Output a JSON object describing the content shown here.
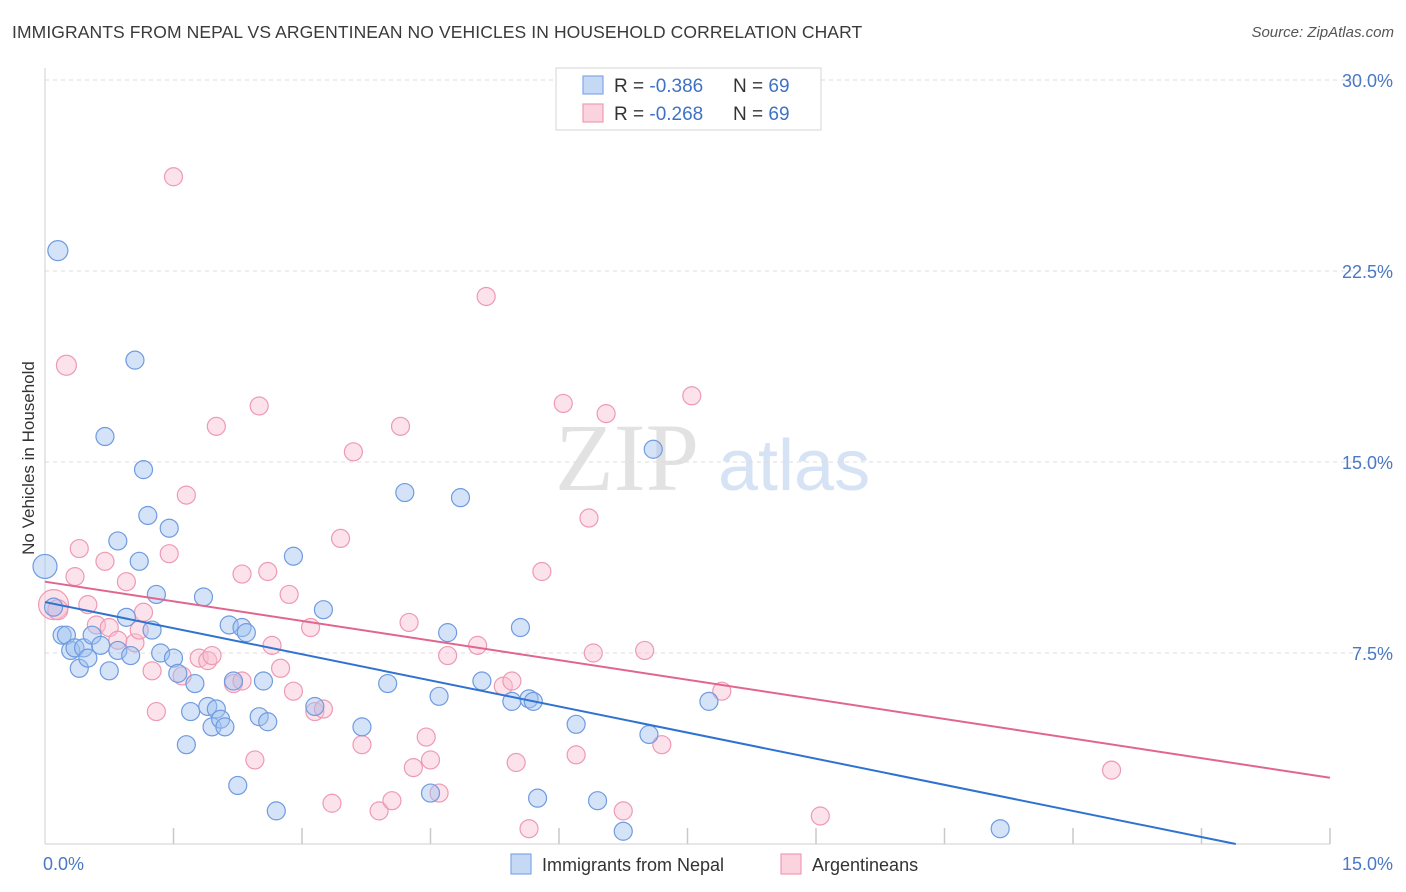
{
  "header": {
    "title": "IMMIGRANTS FROM NEPAL VS ARGENTINEAN NO VEHICLES IN HOUSEHOLD CORRELATION CHART",
    "source": "Source: ZipAtlas.com"
  },
  "watermark": {
    "zip": "ZIP",
    "atlas": "atlas"
  },
  "legend": {
    "rows": [
      {
        "r_label": "R = ",
        "r_value": "-0.386",
        "n_label": "N = ",
        "n_value": "69"
      },
      {
        "r_label": "R = ",
        "r_value": "-0.268",
        "n_label": "N = ",
        "n_value": "69"
      }
    ]
  },
  "bottom_legend": [
    "Immigrants from Nepal",
    "Argentineans"
  ],
  "chart_data": {
    "type": "scatter",
    "title": "IMMIGRANTS FROM NEPAL VS ARGENTINEAN NO VEHICLES IN HOUSEHOLD CORRELATION CHART",
    "xlabel": "",
    "ylabel": "No Vehicles in Household",
    "xlim": [
      0,
      15
    ],
    "ylim": [
      0,
      30
    ],
    "x_tick_labels": [
      "0.0%",
      "15.0%"
    ],
    "y_ticks": [
      7.5,
      15.0,
      22.5,
      30.0
    ],
    "y_tick_labels": [
      "7.5%",
      "15.0%",
      "22.5%",
      "30.0%"
    ],
    "grid": "horizontal dashed",
    "legend_position": "top-center",
    "colors": {
      "nepal": "#7fa8e6",
      "nepal_line": "#2f72d0",
      "argentinean": "#f19bb5",
      "argentinean_line": "#e0668f",
      "tick": "#4a78c4"
    },
    "series": [
      {
        "name": "Immigrants from Nepal",
        "r": -0.386,
        "n": 69,
        "trend": {
          "x": [
            0,
            13.9
          ],
          "y": [
            9.5,
            0
          ]
        },
        "points": [
          [
            0.0,
            10.9,
            12
          ],
          [
            0.15,
            23.3,
            10
          ],
          [
            0.1,
            9.3,
            9
          ],
          [
            0.2,
            8.2,
            9
          ],
          [
            0.25,
            8.2,
            9
          ],
          [
            0.3,
            7.6,
            9
          ],
          [
            0.35,
            7.7,
            9
          ],
          [
            0.4,
            6.9,
            9
          ],
          [
            0.45,
            7.7,
            9
          ],
          [
            0.5,
            7.3,
            9
          ],
          [
            0.55,
            8.2,
            9
          ],
          [
            0.65,
            7.8,
            9
          ],
          [
            0.7,
            16.0,
            9
          ],
          [
            0.75,
            6.8,
            9
          ],
          [
            0.85,
            11.9,
            9
          ],
          [
            0.85,
            7.6,
            9
          ],
          [
            0.95,
            8.9,
            9
          ],
          [
            1.0,
            7.4,
            9
          ],
          [
            1.05,
            19.0,
            9
          ],
          [
            1.1,
            11.1,
            9
          ],
          [
            1.15,
            14.7,
            9
          ],
          [
            1.2,
            12.9,
            9
          ],
          [
            1.25,
            8.4,
            9
          ],
          [
            1.3,
            9.8,
            9
          ],
          [
            1.35,
            7.5,
            9
          ],
          [
            1.45,
            12.4,
            9
          ],
          [
            1.5,
            7.3,
            9
          ],
          [
            1.55,
            6.7,
            9
          ],
          [
            1.65,
            3.9,
            9
          ],
          [
            1.7,
            5.2,
            9
          ],
          [
            1.75,
            6.3,
            9
          ],
          [
            1.85,
            9.7,
            9
          ],
          [
            1.9,
            5.4,
            9
          ],
          [
            1.95,
            4.6,
            9
          ],
          [
            2.0,
            5.3,
            9
          ],
          [
            2.05,
            4.9,
            9
          ],
          [
            2.1,
            4.6,
            9
          ],
          [
            2.15,
            8.6,
            9
          ],
          [
            2.2,
            6.4,
            9
          ],
          [
            2.3,
            8.5,
            9
          ],
          [
            2.35,
            8.3,
            9
          ],
          [
            2.5,
            5.0,
            9
          ],
          [
            2.55,
            6.4,
            9
          ],
          [
            2.6,
            4.8,
            9
          ],
          [
            2.25,
            2.3,
            9
          ],
          [
            2.7,
            1.3,
            9
          ],
          [
            2.9,
            11.3,
            9
          ],
          [
            3.15,
            5.4,
            9
          ],
          [
            3.25,
            9.2,
            9
          ],
          [
            3.7,
            4.6,
            9
          ],
          [
            4.0,
            6.3,
            9
          ],
          [
            4.2,
            13.8,
            9
          ],
          [
            4.5,
            2.0,
            9
          ],
          [
            4.6,
            5.8,
            9
          ],
          [
            4.7,
            8.3,
            9
          ],
          [
            4.85,
            13.6,
            9
          ],
          [
            5.1,
            6.4,
            9
          ],
          [
            5.45,
            5.6,
            9
          ],
          [
            5.55,
            8.5,
            9
          ],
          [
            5.65,
            5.7,
            9
          ],
          [
            5.7,
            5.6,
            9
          ],
          [
            5.75,
            1.8,
            9
          ],
          [
            6.2,
            4.7,
            9
          ],
          [
            6.45,
            1.7,
            9
          ],
          [
            6.75,
            0.5,
            9
          ],
          [
            7.1,
            15.5,
            9
          ],
          [
            7.05,
            4.3,
            9
          ],
          [
            7.75,
            5.6,
            9
          ],
          [
            11.15,
            0.6,
            9
          ]
        ]
      },
      {
        "name": "Argentineans",
        "r": -0.268,
        "n": 69,
        "trend": {
          "x": [
            0,
            15
          ],
          "y": [
            10.3,
            2.6
          ]
        },
        "points": [
          [
            0.1,
            9.4,
            15
          ],
          [
            0.15,
            9.2,
            10
          ],
          [
            0.25,
            18.8,
            10
          ],
          [
            0.35,
            10.5,
            9
          ],
          [
            0.4,
            11.6,
            9
          ],
          [
            0.5,
            9.4,
            9
          ],
          [
            0.6,
            8.6,
            9
          ],
          [
            0.7,
            11.1,
            9
          ],
          [
            0.75,
            8.5,
            9
          ],
          [
            0.85,
            8.0,
            9
          ],
          [
            0.95,
            10.3,
            9
          ],
          [
            1.05,
            7.9,
            9
          ],
          [
            1.1,
            8.4,
            9
          ],
          [
            1.15,
            9.1,
            9
          ],
          [
            1.25,
            6.8,
            9
          ],
          [
            1.3,
            5.2,
            9
          ],
          [
            1.45,
            11.4,
            9
          ],
          [
            1.5,
            26.2,
            9
          ],
          [
            1.6,
            6.6,
            9
          ],
          [
            1.65,
            13.7,
            9
          ],
          [
            1.8,
            7.3,
            9
          ],
          [
            1.9,
            7.2,
            9
          ],
          [
            1.95,
            7.4,
            9
          ],
          [
            2.0,
            16.4,
            9
          ],
          [
            2.2,
            6.3,
            9
          ],
          [
            2.3,
            6.4,
            9
          ],
          [
            2.3,
            10.6,
            9
          ],
          [
            2.45,
            3.3,
            9
          ],
          [
            2.5,
            17.2,
            9
          ],
          [
            2.6,
            10.7,
            9
          ],
          [
            2.65,
            7.8,
            9
          ],
          [
            2.75,
            6.9,
            9
          ],
          [
            2.85,
            9.8,
            9
          ],
          [
            2.9,
            6.0,
            9
          ],
          [
            3.1,
            8.5,
            9
          ],
          [
            3.15,
            5.2,
            9
          ],
          [
            3.25,
            5.3,
            9
          ],
          [
            3.35,
            1.6,
            9
          ],
          [
            3.45,
            12.0,
            9
          ],
          [
            3.6,
            15.4,
            9
          ],
          [
            3.7,
            3.9,
            9
          ],
          [
            3.9,
            1.3,
            9
          ],
          [
            4.05,
            1.7,
            9
          ],
          [
            4.15,
            16.4,
            9
          ],
          [
            4.25,
            8.7,
            9
          ],
          [
            4.3,
            3.0,
            9
          ],
          [
            4.45,
            4.2,
            9
          ],
          [
            4.5,
            3.3,
            9
          ],
          [
            4.6,
            2.0,
            9
          ],
          [
            4.7,
            7.4,
            9
          ],
          [
            5.05,
            7.8,
            9
          ],
          [
            5.15,
            21.5,
            9
          ],
          [
            5.35,
            6.2,
            9
          ],
          [
            5.45,
            6.4,
            9
          ],
          [
            5.5,
            3.2,
            9
          ],
          [
            5.65,
            0.6,
            9
          ],
          [
            5.8,
            10.7,
            9
          ],
          [
            6.05,
            17.3,
            9
          ],
          [
            6.2,
            3.5,
            9
          ],
          [
            6.35,
            12.8,
            9
          ],
          [
            6.4,
            7.5,
            9
          ],
          [
            6.55,
            16.9,
            9
          ],
          [
            6.75,
            1.3,
            9
          ],
          [
            7.0,
            7.6,
            9
          ],
          [
            7.2,
            3.9,
            9
          ],
          [
            7.55,
            17.6,
            9
          ],
          [
            7.9,
            6.0,
            9
          ],
          [
            9.05,
            1.1,
            9
          ],
          [
            12.45,
            2.9,
            9
          ]
        ]
      }
    ]
  }
}
